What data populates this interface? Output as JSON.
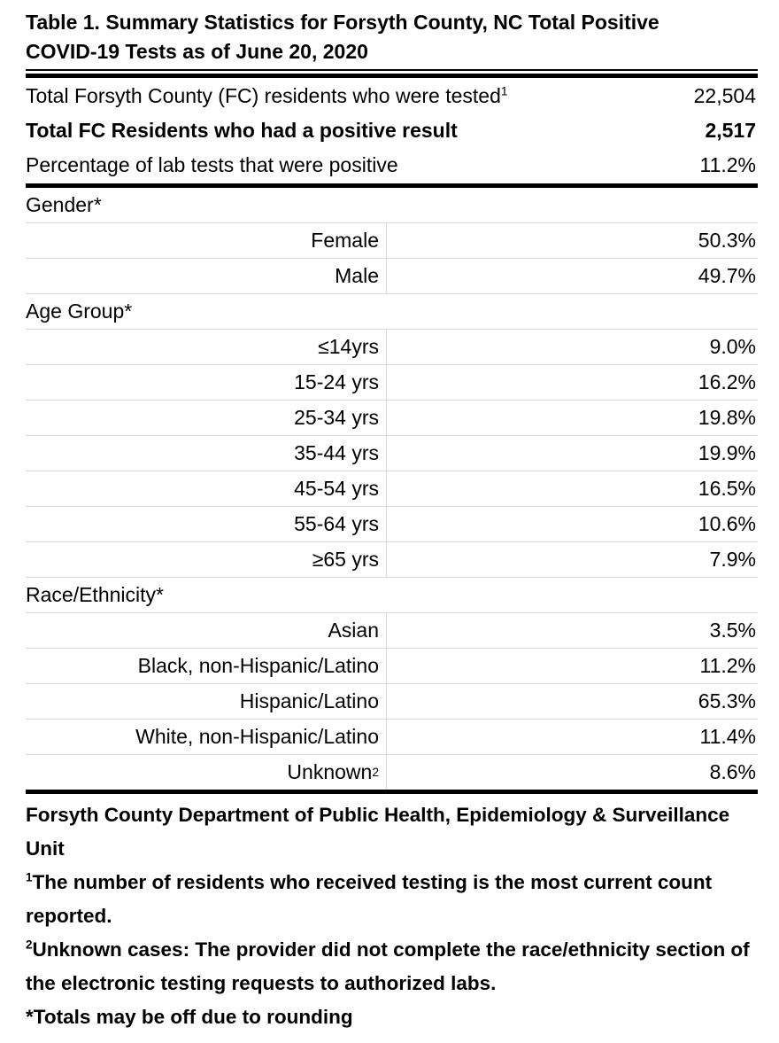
{
  "colors": {
    "background": "#ffffff",
    "text": "#000000",
    "gridline": "#d9d9d9",
    "rule": "#000000"
  },
  "table": {
    "title": {
      "line1": "Table 1. Summary Statistics for Forsyth County, NC Total Positive",
      "line2": "COVID-19 Tests as of June 20, 2020"
    },
    "summary": {
      "rows": [
        {
          "label": "Total Forsyth County (FC) residents who were tested",
          "sup": "1",
          "value": "22,504"
        },
        {
          "label": "Total FC Residents who had a positive result",
          "value": "2,517"
        },
        {
          "label": "Percentage of lab tests that were positive",
          "value": "11.2%"
        }
      ]
    },
    "sections": [
      {
        "header": "Gender*",
        "rows": [
          {
            "label": "Female",
            "value": "50.3%"
          },
          {
            "label": "Male",
            "value": "49.7%"
          }
        ]
      },
      {
        "header": "Age Group*",
        "rows": [
          {
            "label": "≤14yrs",
            "value": "9.0%"
          },
          {
            "label": "15-24 yrs",
            "value": "16.2%"
          },
          {
            "label": "25-34 yrs",
            "value": "19.8%"
          },
          {
            "label": "35-44 yrs",
            "value": "19.9%"
          },
          {
            "label": "45-54 yrs",
            "value": "16.5%"
          },
          {
            "label": "55-64 yrs",
            "value": "10.6%"
          },
          {
            "label": "≥65 yrs",
            "value": "7.9%"
          }
        ]
      },
      {
        "header": "Race/Ethnicity*",
        "rows": [
          {
            "label": "Asian",
            "value": "3.5%"
          },
          {
            "label": "Black, non-Hispanic/Latino",
            "value": "11.2%"
          },
          {
            "label": "Hispanic/Latino",
            "value": "65.3%"
          },
          {
            "label": "White, non-Hispanic/Latino",
            "sup": "",
            "value": "11.4%"
          },
          {
            "label": "Unknown",
            "sup": "2",
            "value": "8.6%"
          }
        ]
      }
    ],
    "footer": {
      "source": "Forsyth County Department of Public Health, Epidemiology & Surveillance Unit",
      "footnote1": {
        "sup": "1",
        "text": "The number of residents who received testing is the most current count reported."
      },
      "footnote2": {
        "sup": "2",
        "text": "Unknown cases: The provider did not complete the race/ethnicity section of the electronic testing requests to authorized labs."
      },
      "rounding_note": "*Totals may be off due to rounding"
    }
  }
}
